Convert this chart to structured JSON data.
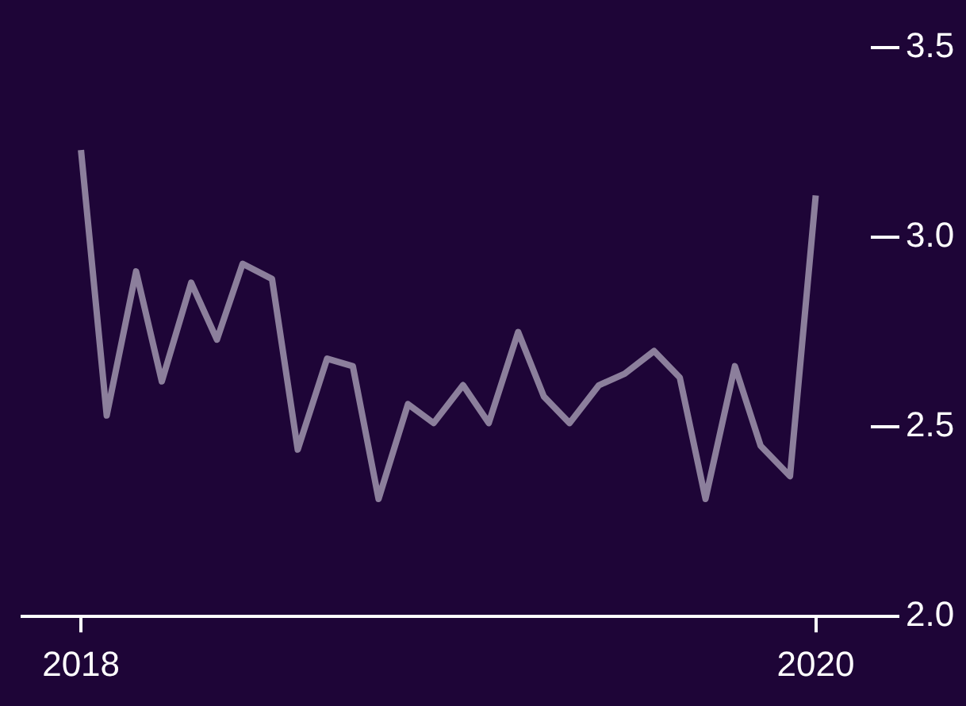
{
  "chart_data": {
    "type": "line",
    "x": [
      2018,
      2018.07,
      2018.15,
      2018.22,
      2018.3,
      2018.37,
      2018.44,
      2018.52,
      2018.59,
      2018.67,
      2018.74,
      2018.81,
      2018.89,
      2018.96,
      2019.04,
      2019.11,
      2019.19,
      2019.26,
      2019.33,
      2019.41,
      2019.48,
      2019.56,
      2019.63,
      2019.7,
      2019.78,
      2019.85,
      2019.93,
      2020
    ],
    "series": [
      {
        "color": "#8c7f9c",
        "values": [
          3.23,
          2.53,
          2.91,
          2.62,
          2.88,
          2.73,
          2.93,
          2.89,
          2.44,
          2.68,
          2.66,
          2.31,
          2.56,
          2.51,
          2.61,
          2.51,
          2.75,
          2.58,
          2.51,
          2.61,
          2.64,
          2.7,
          2.63,
          2.31,
          2.66,
          2.45,
          2.37,
          3.11
        ]
      }
    ],
    "xlim": [
      2017.84,
      2020.15
    ],
    "xticks": [
      2018,
      2020
    ],
    "ylim": [
      2,
      3.5
    ],
    "yticks": [
      {
        "value": 2,
        "label": "2.0"
      },
      {
        "value": 2.5,
        "label": "2.5"
      },
      {
        "value": 3,
        "label": "3.0"
      },
      {
        "value": 3.5,
        "label": "3.5"
      }
    ],
    "grid": false,
    "legend": false,
    "marker": "none",
    "line_style": "solid"
  }
}
